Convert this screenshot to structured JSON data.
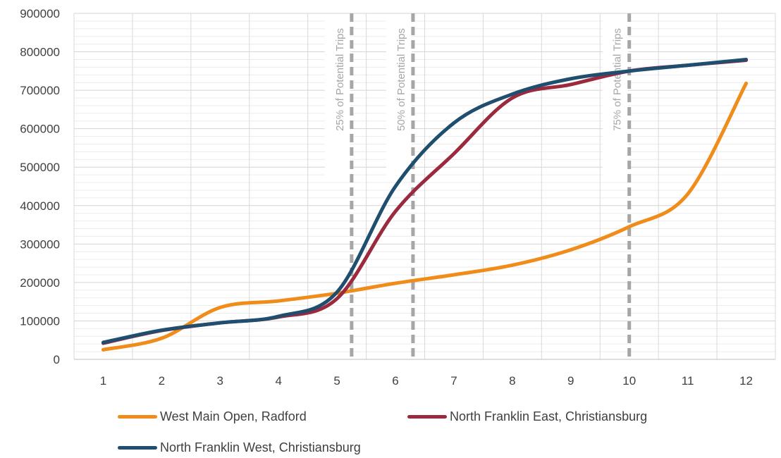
{
  "chart_data": {
    "type": "line",
    "x": [
      1,
      2,
      3,
      4,
      5,
      6,
      7,
      8,
      9,
      10,
      11,
      12
    ],
    "ylim": [
      0,
      900000
    ],
    "yticks": [
      0,
      100000,
      200000,
      300000,
      400000,
      500000,
      600000,
      700000,
      800000,
      900000
    ],
    "grid": true,
    "legend_position": "bottom",
    "series": [
      {
        "name": "West Main Open, Radford",
        "color": "#f08c1a",
        "values": [
          25000,
          55000,
          135000,
          152000,
          172000,
          198000,
          220000,
          245000,
          285000,
          345000,
          430000,
          718000
        ]
      },
      {
        "name": "North Franklin East, Christiansburg",
        "color": "#9b2a3f",
        "values": [
          42000,
          75000,
          95000,
          110000,
          158000,
          385000,
          535000,
          680000,
          715000,
          750000,
          765000,
          778000
        ]
      },
      {
        "name": "North Franklin West, Christiansburg",
        "color": "#1f4e6e",
        "values": [
          44000,
          76000,
          95000,
          112000,
          175000,
          450000,
          615000,
          690000,
          730000,
          750000,
          765000,
          780000
        ]
      }
    ],
    "markers": [
      {
        "label": "25% of Potential Trips",
        "x": 5.25
      },
      {
        "label": "50% of Potential Trips",
        "x": 6.3
      },
      {
        "label": "75% of Potential Trips",
        "x": 10.0
      }
    ]
  }
}
